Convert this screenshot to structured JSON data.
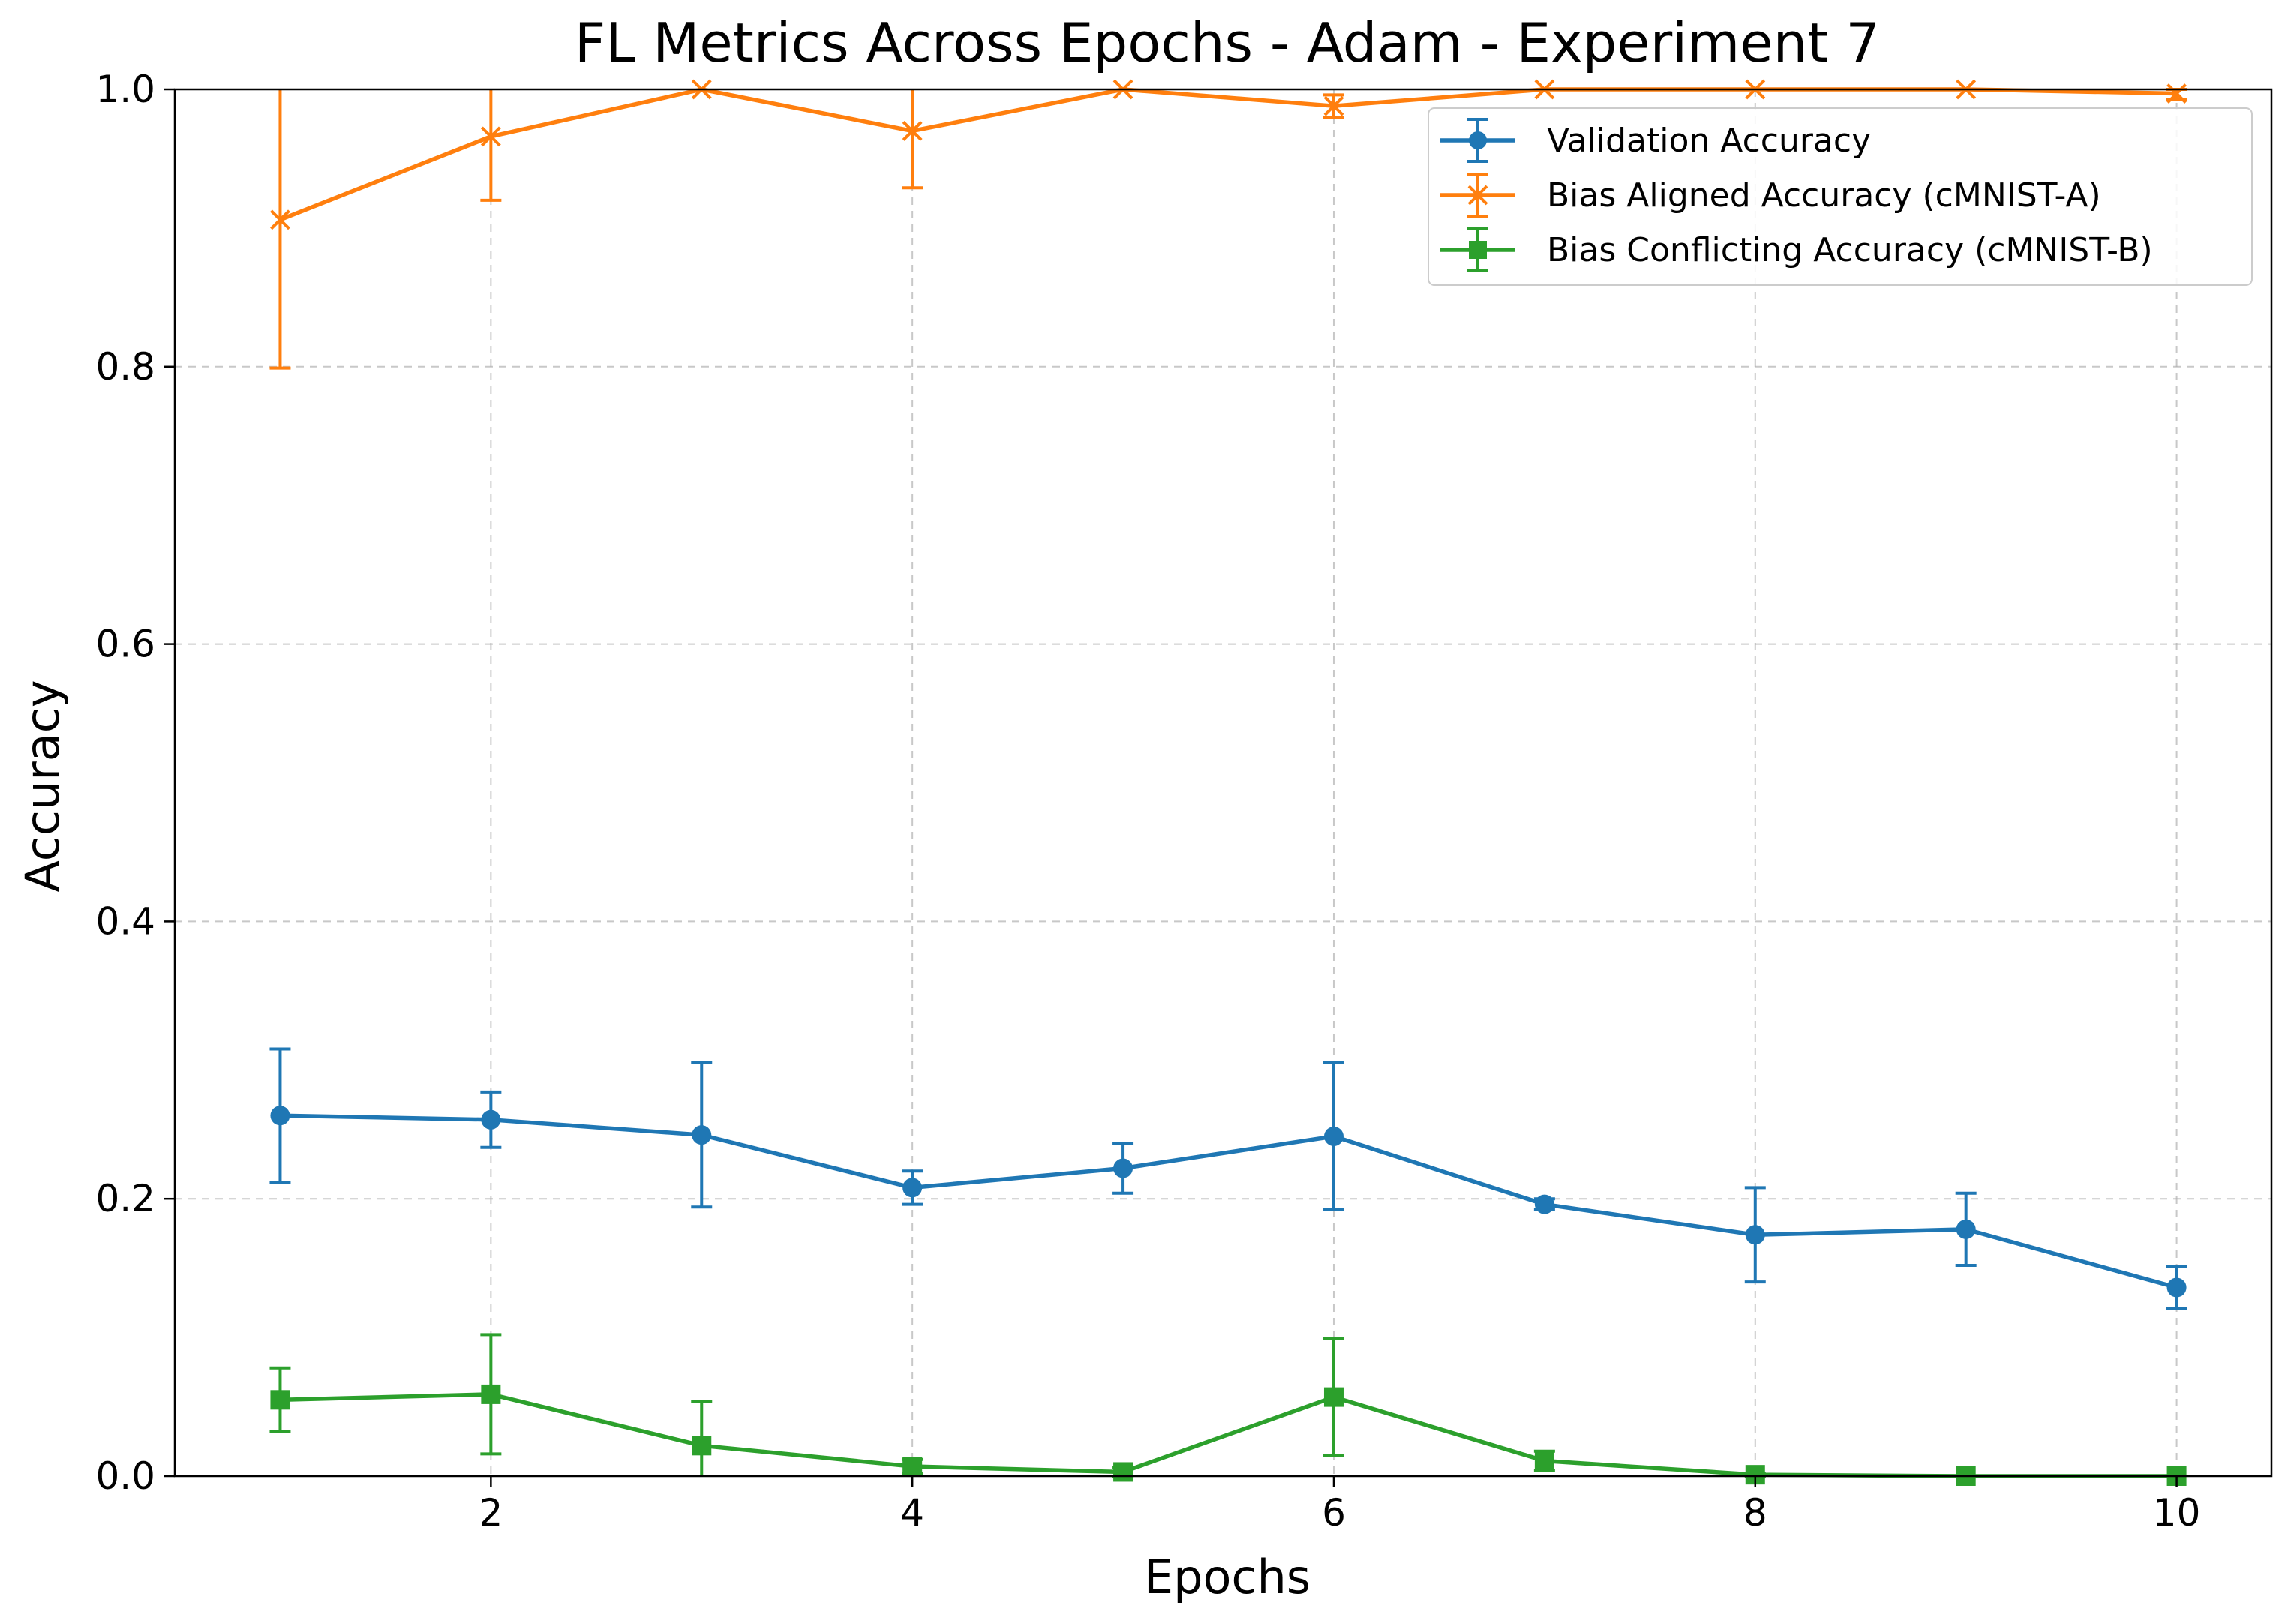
{
  "chart_data": {
    "type": "line",
    "title": "FL Metrics Across Epochs - Adam - Experiment 7",
    "xlabel": "Epochs",
    "ylabel": "Accuracy",
    "xlim": [
      0.5,
      10.45
    ],
    "ylim": [
      0,
      1
    ],
    "xticks": [
      2,
      4,
      6,
      8,
      10
    ],
    "yticks": [
      0.0,
      0.2,
      0.4,
      0.6,
      0.8,
      1.0
    ],
    "grid": true,
    "legend_position": "top-right",
    "x": [
      1,
      2,
      3,
      4,
      5,
      6,
      7,
      8,
      9,
      10
    ],
    "series": [
      {
        "name": "Validation Accuracy",
        "color": "#1f77b4",
        "marker": "circle",
        "values": [
          0.26,
          0.257,
          0.246,
          0.208,
          0.222,
          0.245,
          0.196,
          0.174,
          0.178,
          0.136
        ],
        "errors": [
          0.048,
          0.02,
          0.052,
          0.012,
          0.018,
          0.053,
          0.004,
          0.034,
          0.026,
          0.015
        ]
      },
      {
        "name": "Bias Aligned Accuracy (cMNIST-A)",
        "color": "#ff7f0e",
        "marker": "x",
        "values": [
          0.906,
          0.966,
          1.0,
          0.97,
          1.0,
          0.988,
          1.0,
          1.0,
          1.0,
          0.997
        ],
        "errors": [
          0.107,
          0.046,
          0.0,
          0.041,
          0.0,
          0.008,
          0.0,
          0.0,
          0.0,
          0.004
        ]
      },
      {
        "name": "Bias Conflicting Accuracy (cMNIST-B)",
        "color": "#2ca02c",
        "marker": "square",
        "values": [
          0.055,
          0.059,
          0.022,
          0.007,
          0.003,
          0.057,
          0.011,
          0.001,
          0.0,
          0.0
        ],
        "errors": [
          0.023,
          0.043,
          0.032,
          0.005,
          0.003,
          0.042,
          0.007,
          0.001,
          0.0,
          0.0
        ]
      }
    ]
  }
}
